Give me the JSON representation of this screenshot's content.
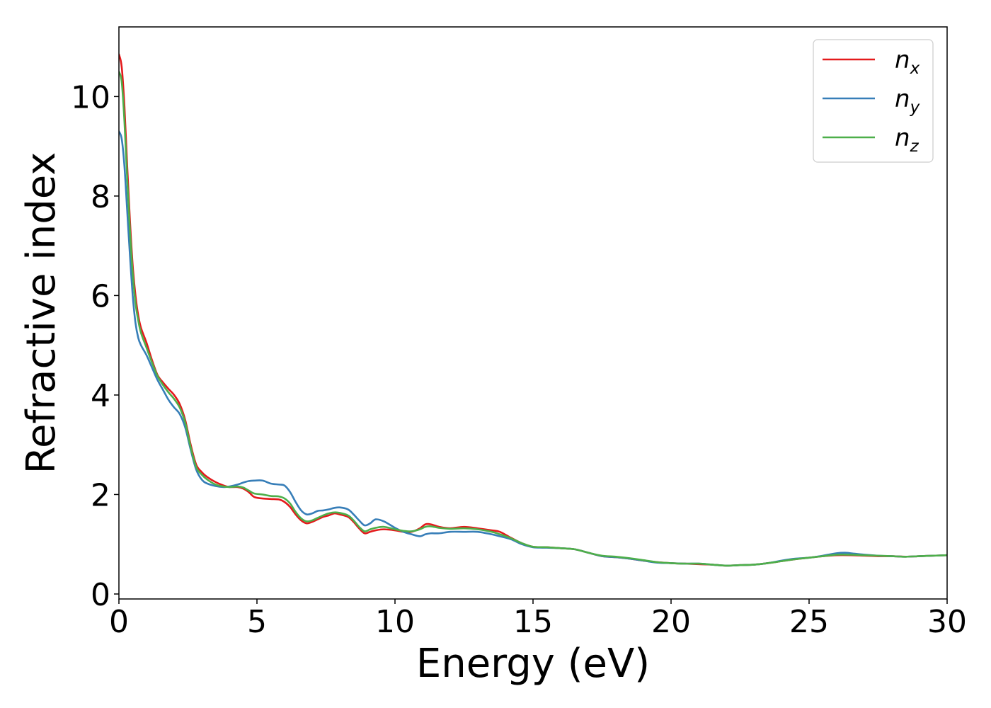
{
  "chart_data": {
    "type": "line",
    "xlabel": "Energy (eV)",
    "ylabel": "Refractive index",
    "xlim": [
      0,
      30
    ],
    "ylim": [
      -0.1,
      11.4
    ],
    "grid": false,
    "legend_placement": "top-right",
    "x_ticks": [
      0,
      5,
      10,
      15,
      20,
      25,
      30
    ],
    "x_tick_labels": [
      "0",
      "5",
      "10",
      "15",
      "20",
      "25",
      "30"
    ],
    "y_ticks": [
      0,
      2,
      4,
      6,
      8,
      10
    ],
    "y_tick_labels": [
      "0",
      "2",
      "4",
      "6",
      "8",
      "10"
    ],
    "series": [
      {
        "name": "n_x",
        "legend_base": "n",
        "legend_sub": "x",
        "color": "#e41a1c",
        "points": [
          [
            0.0,
            10.85
          ],
          [
            0.1,
            10.6
          ],
          [
            0.2,
            9.8
          ],
          [
            0.3,
            8.6
          ],
          [
            0.4,
            7.5
          ],
          [
            0.5,
            6.6
          ],
          [
            0.6,
            6.0
          ],
          [
            0.7,
            5.6
          ],
          [
            0.8,
            5.35
          ],
          [
            1.0,
            5.05
          ],
          [
            1.2,
            4.7
          ],
          [
            1.4,
            4.4
          ],
          [
            1.6,
            4.25
          ],
          [
            1.8,
            4.12
          ],
          [
            2.0,
            4.0
          ],
          [
            2.2,
            3.82
          ],
          [
            2.4,
            3.5
          ],
          [
            2.6,
            3.0
          ],
          [
            2.8,
            2.6
          ],
          [
            3.0,
            2.45
          ],
          [
            3.2,
            2.35
          ],
          [
            3.5,
            2.25
          ],
          [
            3.8,
            2.18
          ],
          [
            4.0,
            2.15
          ],
          [
            4.3,
            2.15
          ],
          [
            4.5,
            2.12
          ],
          [
            4.7,
            2.05
          ],
          [
            4.9,
            1.95
          ],
          [
            5.2,
            1.92
          ],
          [
            5.5,
            1.91
          ],
          [
            5.8,
            1.9
          ],
          [
            6.0,
            1.85
          ],
          [
            6.2,
            1.75
          ],
          [
            6.4,
            1.6
          ],
          [
            6.6,
            1.48
          ],
          [
            6.8,
            1.42
          ],
          [
            7.0,
            1.45
          ],
          [
            7.2,
            1.5
          ],
          [
            7.4,
            1.55
          ],
          [
            7.6,
            1.58
          ],
          [
            7.8,
            1.62
          ],
          [
            8.0,
            1.6
          ],
          [
            8.3,
            1.55
          ],
          [
            8.5,
            1.45
          ],
          [
            8.7,
            1.32
          ],
          [
            8.9,
            1.22
          ],
          [
            9.1,
            1.25
          ],
          [
            9.3,
            1.28
          ],
          [
            9.6,
            1.3
          ],
          [
            10.0,
            1.28
          ],
          [
            10.3,
            1.25
          ],
          [
            10.6,
            1.25
          ],
          [
            10.9,
            1.32
          ],
          [
            11.1,
            1.4
          ],
          [
            11.3,
            1.4
          ],
          [
            11.6,
            1.35
          ],
          [
            12.0,
            1.32
          ],
          [
            12.5,
            1.35
          ],
          [
            13.0,
            1.32
          ],
          [
            13.5,
            1.28
          ],
          [
            13.8,
            1.25
          ],
          [
            14.2,
            1.13
          ],
          [
            14.6,
            1.02
          ],
          [
            15.0,
            0.95
          ],
          [
            15.5,
            0.94
          ],
          [
            16.0,
            0.92
          ],
          [
            16.5,
            0.9
          ],
          [
            17.0,
            0.83
          ],
          [
            17.5,
            0.76
          ],
          [
            18.0,
            0.74
          ],
          [
            18.5,
            0.71
          ],
          [
            19.0,
            0.67
          ],
          [
            19.5,
            0.64
          ],
          [
            20.0,
            0.62
          ],
          [
            20.5,
            0.61
          ],
          [
            21.0,
            0.6
          ],
          [
            21.5,
            0.59
          ],
          [
            22.0,
            0.57
          ],
          [
            22.5,
            0.58
          ],
          [
            23.0,
            0.59
          ],
          [
            23.5,
            0.62
          ],
          [
            24.0,
            0.66
          ],
          [
            24.5,
            0.7
          ],
          [
            25.0,
            0.73
          ],
          [
            25.5,
            0.76
          ],
          [
            26.0,
            0.78
          ],
          [
            26.5,
            0.78
          ],
          [
            27.0,
            0.77
          ],
          [
            27.5,
            0.76
          ],
          [
            28.0,
            0.76
          ],
          [
            28.5,
            0.75
          ],
          [
            29.0,
            0.76
          ],
          [
            29.5,
            0.77
          ],
          [
            30.0,
            0.78
          ]
        ]
      },
      {
        "name": "n_y",
        "legend_base": "n",
        "legend_sub": "y",
        "color": "#377eb8",
        "points": [
          [
            0.0,
            9.3
          ],
          [
            0.1,
            9.15
          ],
          [
            0.2,
            8.6
          ],
          [
            0.3,
            7.7
          ],
          [
            0.4,
            6.8
          ],
          [
            0.5,
            6.0
          ],
          [
            0.6,
            5.45
          ],
          [
            0.7,
            5.15
          ],
          [
            0.8,
            5.0
          ],
          [
            1.0,
            4.8
          ],
          [
            1.2,
            4.55
          ],
          [
            1.4,
            4.3
          ],
          [
            1.6,
            4.1
          ],
          [
            1.8,
            3.9
          ],
          [
            2.0,
            3.75
          ],
          [
            2.2,
            3.62
          ],
          [
            2.4,
            3.35
          ],
          [
            2.6,
            2.9
          ],
          [
            2.8,
            2.5
          ],
          [
            3.0,
            2.3
          ],
          [
            3.2,
            2.22
          ],
          [
            3.5,
            2.17
          ],
          [
            3.8,
            2.15
          ],
          [
            4.0,
            2.16
          ],
          [
            4.3,
            2.2
          ],
          [
            4.5,
            2.24
          ],
          [
            4.7,
            2.27
          ],
          [
            4.9,
            2.28
          ],
          [
            5.2,
            2.28
          ],
          [
            5.5,
            2.22
          ],
          [
            5.8,
            2.2
          ],
          [
            6.0,
            2.18
          ],
          [
            6.2,
            2.05
          ],
          [
            6.4,
            1.85
          ],
          [
            6.6,
            1.68
          ],
          [
            6.8,
            1.6
          ],
          [
            7.0,
            1.62
          ],
          [
            7.2,
            1.67
          ],
          [
            7.4,
            1.68
          ],
          [
            7.6,
            1.7
          ],
          [
            7.8,
            1.73
          ],
          [
            8.0,
            1.74
          ],
          [
            8.3,
            1.7
          ],
          [
            8.5,
            1.6
          ],
          [
            8.7,
            1.48
          ],
          [
            8.9,
            1.38
          ],
          [
            9.1,
            1.42
          ],
          [
            9.3,
            1.5
          ],
          [
            9.6,
            1.46
          ],
          [
            10.0,
            1.33
          ],
          [
            10.3,
            1.25
          ],
          [
            10.6,
            1.2
          ],
          [
            10.9,
            1.16
          ],
          [
            11.1,
            1.2
          ],
          [
            11.3,
            1.22
          ],
          [
            11.6,
            1.22
          ],
          [
            12.0,
            1.25
          ],
          [
            12.5,
            1.25
          ],
          [
            13.0,
            1.25
          ],
          [
            13.5,
            1.2
          ],
          [
            13.8,
            1.16
          ],
          [
            14.2,
            1.1
          ],
          [
            14.6,
            1.0
          ],
          [
            15.0,
            0.94
          ],
          [
            15.5,
            0.93
          ],
          [
            16.0,
            0.92
          ],
          [
            16.5,
            0.9
          ],
          [
            17.0,
            0.83
          ],
          [
            17.5,
            0.76
          ],
          [
            18.0,
            0.74
          ],
          [
            18.5,
            0.71
          ],
          [
            19.0,
            0.67
          ],
          [
            19.5,
            0.63
          ],
          [
            20.0,
            0.62
          ],
          [
            20.5,
            0.61
          ],
          [
            21.0,
            0.61
          ],
          [
            21.5,
            0.59
          ],
          [
            22.0,
            0.57
          ],
          [
            22.5,
            0.58
          ],
          [
            23.0,
            0.59
          ],
          [
            23.5,
            0.62
          ],
          [
            24.0,
            0.67
          ],
          [
            24.5,
            0.71
          ],
          [
            25.0,
            0.73
          ],
          [
            25.5,
            0.77
          ],
          [
            26.0,
            0.82
          ],
          [
            26.3,
            0.83
          ],
          [
            26.5,
            0.82
          ],
          [
            27.0,
            0.79
          ],
          [
            27.5,
            0.77
          ],
          [
            28.0,
            0.76
          ],
          [
            28.5,
            0.75
          ],
          [
            29.0,
            0.76
          ],
          [
            29.5,
            0.77
          ],
          [
            30.0,
            0.78
          ]
        ]
      },
      {
        "name": "n_z",
        "legend_base": "n",
        "legend_sub": "z",
        "color": "#4daf4a",
        "points": [
          [
            0.0,
            10.5
          ],
          [
            0.1,
            10.3
          ],
          [
            0.2,
            9.5
          ],
          [
            0.3,
            8.35
          ],
          [
            0.4,
            7.3
          ],
          [
            0.5,
            6.45
          ],
          [
            0.6,
            5.85
          ],
          [
            0.7,
            5.5
          ],
          [
            0.8,
            5.25
          ],
          [
            1.0,
            4.95
          ],
          [
            1.2,
            4.65
          ],
          [
            1.4,
            4.38
          ],
          [
            1.6,
            4.2
          ],
          [
            1.8,
            4.05
          ],
          [
            2.0,
            3.92
          ],
          [
            2.2,
            3.75
          ],
          [
            2.4,
            3.45
          ],
          [
            2.6,
            2.95
          ],
          [
            2.8,
            2.55
          ],
          [
            3.0,
            2.4
          ],
          [
            3.2,
            2.3
          ],
          [
            3.5,
            2.2
          ],
          [
            3.8,
            2.16
          ],
          [
            4.0,
            2.15
          ],
          [
            4.3,
            2.16
          ],
          [
            4.5,
            2.14
          ],
          [
            4.7,
            2.08
          ],
          [
            4.9,
            2.02
          ],
          [
            5.2,
            2.0
          ],
          [
            5.5,
            1.97
          ],
          [
            5.8,
            1.96
          ],
          [
            6.0,
            1.92
          ],
          [
            6.2,
            1.82
          ],
          [
            6.4,
            1.65
          ],
          [
            6.6,
            1.52
          ],
          [
            6.8,
            1.46
          ],
          [
            7.0,
            1.48
          ],
          [
            7.2,
            1.53
          ],
          [
            7.4,
            1.58
          ],
          [
            7.6,
            1.62
          ],
          [
            7.8,
            1.64
          ],
          [
            8.0,
            1.63
          ],
          [
            8.3,
            1.58
          ],
          [
            8.5,
            1.48
          ],
          [
            8.7,
            1.35
          ],
          [
            8.9,
            1.26
          ],
          [
            9.1,
            1.3
          ],
          [
            9.3,
            1.33
          ],
          [
            9.6,
            1.35
          ],
          [
            10.0,
            1.3
          ],
          [
            10.3,
            1.27
          ],
          [
            10.6,
            1.26
          ],
          [
            10.9,
            1.3
          ],
          [
            11.1,
            1.35
          ],
          [
            11.3,
            1.36
          ],
          [
            11.6,
            1.33
          ],
          [
            12.0,
            1.31
          ],
          [
            12.5,
            1.32
          ],
          [
            13.0,
            1.3
          ],
          [
            13.5,
            1.25
          ],
          [
            13.8,
            1.2
          ],
          [
            14.2,
            1.12
          ],
          [
            14.6,
            1.02
          ],
          [
            15.0,
            0.95
          ],
          [
            15.5,
            0.94
          ],
          [
            16.0,
            0.92
          ],
          [
            16.5,
            0.9
          ],
          [
            17.0,
            0.83
          ],
          [
            17.5,
            0.77
          ],
          [
            18.0,
            0.75
          ],
          [
            18.5,
            0.72
          ],
          [
            19.0,
            0.68
          ],
          [
            19.5,
            0.64
          ],
          [
            20.0,
            0.62
          ],
          [
            20.5,
            0.61
          ],
          [
            21.0,
            0.61
          ],
          [
            21.5,
            0.59
          ],
          [
            22.0,
            0.57
          ],
          [
            22.5,
            0.58
          ],
          [
            23.0,
            0.59
          ],
          [
            23.5,
            0.62
          ],
          [
            24.0,
            0.66
          ],
          [
            24.5,
            0.7
          ],
          [
            25.0,
            0.73
          ],
          [
            25.5,
            0.76
          ],
          [
            26.0,
            0.79
          ],
          [
            26.5,
            0.79
          ],
          [
            27.0,
            0.78
          ],
          [
            27.5,
            0.77
          ],
          [
            28.0,
            0.76
          ],
          [
            28.5,
            0.75
          ],
          [
            29.0,
            0.76
          ],
          [
            29.5,
            0.77
          ],
          [
            30.0,
            0.78
          ]
        ]
      }
    ]
  }
}
